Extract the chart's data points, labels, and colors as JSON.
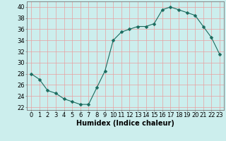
{
  "x": [
    0,
    1,
    2,
    3,
    4,
    5,
    6,
    7,
    8,
    9,
    10,
    11,
    12,
    13,
    14,
    15,
    16,
    17,
    18,
    19,
    20,
    21,
    22,
    23
  ],
  "y": [
    28,
    27,
    25,
    24.5,
    23.5,
    23,
    22.5,
    22.5,
    25.5,
    28.5,
    34,
    35.5,
    36,
    36.5,
    36.5,
    37,
    39.5,
    40,
    39.5,
    39,
    38.5,
    36.5,
    34.5,
    31.5
  ],
  "line_color": "#1a6b5e",
  "marker": "D",
  "marker_size": 2.5,
  "bg_color": "#cceeed",
  "grid_color_major": "#f0b0b0",
  "grid_color_minor": "#ffffff",
  "xlabel": "Humidex (Indice chaleur)",
  "xlim": [
    -0.5,
    23.5
  ],
  "ylim": [
    21.5,
    41
  ],
  "yticks": [
    22,
    24,
    26,
    28,
    30,
    32,
    34,
    36,
    38,
    40
  ],
  "xticks": [
    0,
    1,
    2,
    3,
    4,
    5,
    6,
    7,
    8,
    9,
    10,
    11,
    12,
    13,
    14,
    15,
    16,
    17,
    18,
    19,
    20,
    21,
    22,
    23
  ],
  "tick_fontsize": 6,
  "xlabel_fontsize": 7
}
